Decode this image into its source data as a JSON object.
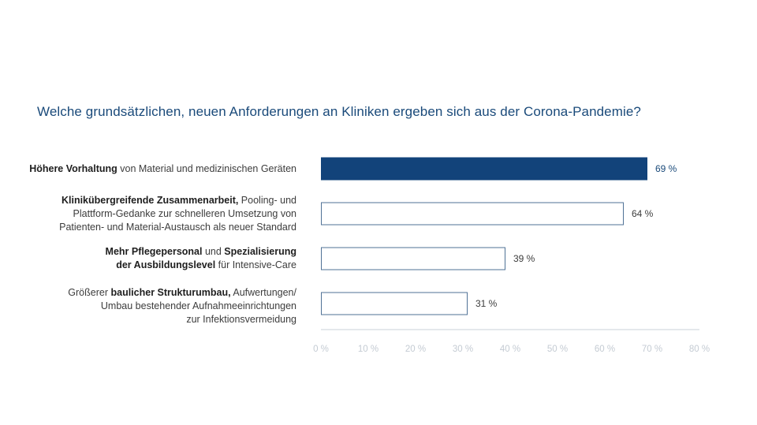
{
  "chart_data": {
    "type": "bar",
    "orientation": "horizontal",
    "title": "Welche grundsätzlichen, neuen Anforderungen an Kliniken ergeben sich aus der Corona-Pandemie?",
    "categories": [
      {
        "lines": [
          [
            {
              "text": "Höhere Vorhaltung",
              "bold": true
            },
            {
              "text": " von Material und medizinischen Geräten",
              "bold": false
            }
          ]
        ]
      },
      {
        "lines": [
          [
            {
              "text": "Klinikübergreifende Zusammenarbeit,",
              "bold": true
            },
            {
              "text": " Pooling- und",
              "bold": false
            }
          ],
          [
            {
              "text": "Plattform-Gedanke zur schnelleren Umsetzung von",
              "bold": false
            }
          ],
          [
            {
              "text": "Patienten- und Material-Austausch als neuer Standard",
              "bold": false
            }
          ]
        ]
      },
      {
        "lines": [
          [
            {
              "text": "Mehr Pflegepersonal",
              "bold": true
            },
            {
              "text": " und ",
              "bold": false
            },
            {
              "text": "Spezialisierung",
              "bold": true
            }
          ],
          [
            {
              "text": "der Ausbildungslevel",
              "bold": true
            },
            {
              "text": " für Intensive-Care",
              "bold": false
            }
          ]
        ]
      },
      {
        "lines": [
          [
            {
              "text": "Größerer ",
              "bold": false
            },
            {
              "text": "baulicher Strukturumbau,",
              "bold": true
            },
            {
              "text": " Aufwertungen/",
              "bold": false
            }
          ],
          [
            {
              "text": "Umbau bestehender Aufnahmeeinrichtungen",
              "bold": false
            }
          ],
          [
            {
              "text": "zur Infektionsvermeidung",
              "bold": false
            }
          ]
        ]
      }
    ],
    "values": [
      69,
      64,
      39,
      31
    ],
    "value_labels": [
      "69 %",
      "64 %",
      "39 %",
      "31 %"
    ],
    "highlight_index": 0,
    "xlim": [
      0,
      80
    ],
    "ticks": [
      0,
      10,
      20,
      30,
      40,
      50,
      60,
      70,
      80
    ],
    "tick_labels": [
      "0 %",
      "10 %",
      "20 %",
      "30 %",
      "40 %",
      "50 %",
      "60 %",
      "70 %",
      "80 %"
    ],
    "grid": false,
    "legend": "none",
    "colors": {
      "highlight_fill": "#12437a",
      "bar_stroke": "#4f7196",
      "bar_fill": "#ffffff",
      "axis": "#c9d0d8",
      "title": "#1a4a7a"
    }
  }
}
